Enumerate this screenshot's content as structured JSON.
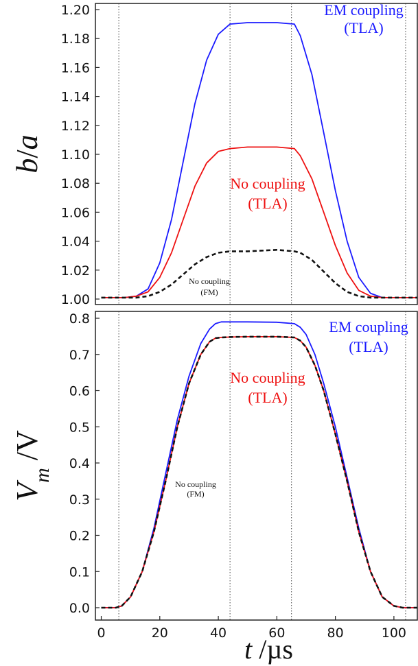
{
  "chart_data": [
    {
      "type": "line",
      "panel": "top",
      "ylabel": {
        "var": "b",
        "sep": "/",
        "unit": "a"
      },
      "ylim": [
        1.0,
        1.2
      ],
      "xlim": [
        -2,
        108
      ],
      "yticks": [
        "1.00",
        "1.02",
        "1.04",
        "1.06",
        "1.08",
        "1.10",
        "1.12",
        "1.14",
        "1.16",
        "1.18",
        "1.20"
      ],
      "vlines": [
        6,
        44,
        65,
        104
      ],
      "annotations": [
        {
          "lines": [
            "EM coupling",
            "(TLA)"
          ],
          "color": "#1a1aff",
          "size": "big"
        },
        {
          "lines": [
            "No coupling",
            "(TLA)"
          ],
          "color": "#ee1111",
          "size": "big"
        },
        {
          "lines": [
            "No coupling",
            "(FM)"
          ],
          "color": "#111111",
          "size": "small"
        }
      ],
      "series": [
        {
          "color": "#1a1aff",
          "style": "solid",
          "x": [
            0,
            8,
            12,
            16,
            20,
            24,
            28,
            32,
            36,
            40,
            44,
            50,
            60,
            66,
            68,
            72,
            76,
            80,
            84,
            88,
            92,
            96,
            100,
            108
          ],
          "y": [
            1.001,
            1.001,
            1.002,
            1.007,
            1.025,
            1.055,
            1.095,
            1.135,
            1.165,
            1.183,
            1.19,
            1.191,
            1.191,
            1.19,
            1.182,
            1.155,
            1.115,
            1.075,
            1.04,
            1.015,
            1.004,
            1.001,
            1.001,
            1.001
          ]
        },
        {
          "color": "#ee1111",
          "style": "solid",
          "x": [
            0,
            8,
            12,
            16,
            20,
            24,
            28,
            32,
            36,
            40,
            44,
            50,
            60,
            66,
            68,
            72,
            76,
            80,
            84,
            88,
            92,
            96,
            100,
            108
          ],
          "y": [
            1.001,
            1.001,
            1.002,
            1.005,
            1.015,
            1.032,
            1.055,
            1.078,
            1.094,
            1.102,
            1.104,
            1.105,
            1.105,
            1.104,
            1.099,
            1.083,
            1.06,
            1.037,
            1.018,
            1.006,
            1.002,
            1.001,
            1.001,
            1.001
          ]
        },
        {
          "color": "#111111",
          "style": "dashed",
          "x": [
            0,
            8,
            12,
            16,
            20,
            24,
            28,
            32,
            36,
            40,
            44,
            50,
            60,
            66,
            68,
            72,
            76,
            80,
            84,
            88,
            92,
            96,
            100,
            108
          ],
          "y": [
            1.001,
            1.001,
            1.001,
            1.002,
            1.005,
            1.01,
            1.017,
            1.024,
            1.029,
            1.032,
            1.033,
            1.033,
            1.034,
            1.033,
            1.032,
            1.027,
            1.019,
            1.011,
            1.005,
            1.002,
            1.001,
            1.001,
            1.001,
            1.001
          ]
        }
      ]
    },
    {
      "type": "line",
      "panel": "bottom",
      "ylabel": {
        "var": "V",
        "sub": "m",
        "sep": " /",
        "unit": "V"
      },
      "xlabel": {
        "var": "t",
        "sep": " /",
        "unit": "µs"
      },
      "ylim": [
        -0.02,
        0.81
      ],
      "xlim": [
        -2,
        108
      ],
      "yticks": [
        "0.0",
        "0.1",
        "0.2",
        "0.3",
        "0.4",
        "0.5",
        "0.6",
        "0.7",
        "0.8"
      ],
      "xticks": [
        "0",
        "20",
        "40",
        "60",
        "80",
        "100"
      ],
      "vlines": [
        6,
        44,
        65,
        104
      ],
      "annotations": [
        {
          "lines": [
            "EM coupling",
            "(TLA)"
          ],
          "color": "#1a1aff",
          "size": "big"
        },
        {
          "lines": [
            "No coupling",
            "(TLA)"
          ],
          "color": "#ee1111",
          "size": "big"
        },
        {
          "lines": [
            "No coupling",
            "(FM)"
          ],
          "color": "#111111",
          "size": "small"
        }
      ],
      "series": [
        {
          "color": "#1a1aff",
          "style": "solid",
          "x": [
            0,
            5,
            7,
            10,
            14,
            18,
            22,
            26,
            30,
            34,
            37,
            39,
            41,
            44,
            50,
            60,
            66,
            68,
            70,
            73,
            76,
            80,
            84,
            88,
            92,
            96,
            100,
            103,
            106,
            108
          ],
          "y": [
            0.0,
            0.0,
            0.005,
            0.03,
            0.1,
            0.22,
            0.37,
            0.52,
            0.64,
            0.73,
            0.77,
            0.785,
            0.79,
            0.79,
            0.79,
            0.789,
            0.785,
            0.775,
            0.755,
            0.7,
            0.62,
            0.5,
            0.36,
            0.22,
            0.1,
            0.03,
            0.005,
            0.0,
            0.0,
            0.0
          ]
        },
        {
          "color": "#ee1111",
          "style": "solid",
          "x": [
            0,
            5,
            7,
            10,
            14,
            18,
            22,
            26,
            30,
            34,
            37,
            39,
            41,
            44,
            50,
            60,
            66,
            68,
            70,
            73,
            76,
            80,
            84,
            88,
            92,
            96,
            100,
            103,
            106,
            108
          ],
          "y": [
            0.0,
            0.0,
            0.005,
            0.03,
            0.1,
            0.21,
            0.35,
            0.5,
            0.62,
            0.7,
            0.735,
            0.745,
            0.747,
            0.748,
            0.749,
            0.749,
            0.747,
            0.738,
            0.72,
            0.67,
            0.6,
            0.48,
            0.35,
            0.21,
            0.1,
            0.03,
            0.005,
            0.0,
            0.0,
            0.0
          ]
        },
        {
          "color": "#111111",
          "style": "dashed",
          "x": [
            0,
            5,
            7,
            10,
            14,
            18,
            22,
            26,
            30,
            34,
            37,
            39,
            41,
            44,
            50,
            60,
            66,
            68,
            70,
            73,
            76,
            80,
            84,
            88,
            92,
            96,
            100,
            103,
            106,
            108
          ],
          "y": [
            0.0,
            0.0,
            0.005,
            0.03,
            0.1,
            0.21,
            0.35,
            0.5,
            0.62,
            0.7,
            0.735,
            0.745,
            0.747,
            0.748,
            0.749,
            0.749,
            0.747,
            0.738,
            0.72,
            0.67,
            0.6,
            0.48,
            0.35,
            0.21,
            0.1,
            0.03,
            0.005,
            0.0,
            0.0,
            0.0
          ]
        }
      ]
    }
  ]
}
